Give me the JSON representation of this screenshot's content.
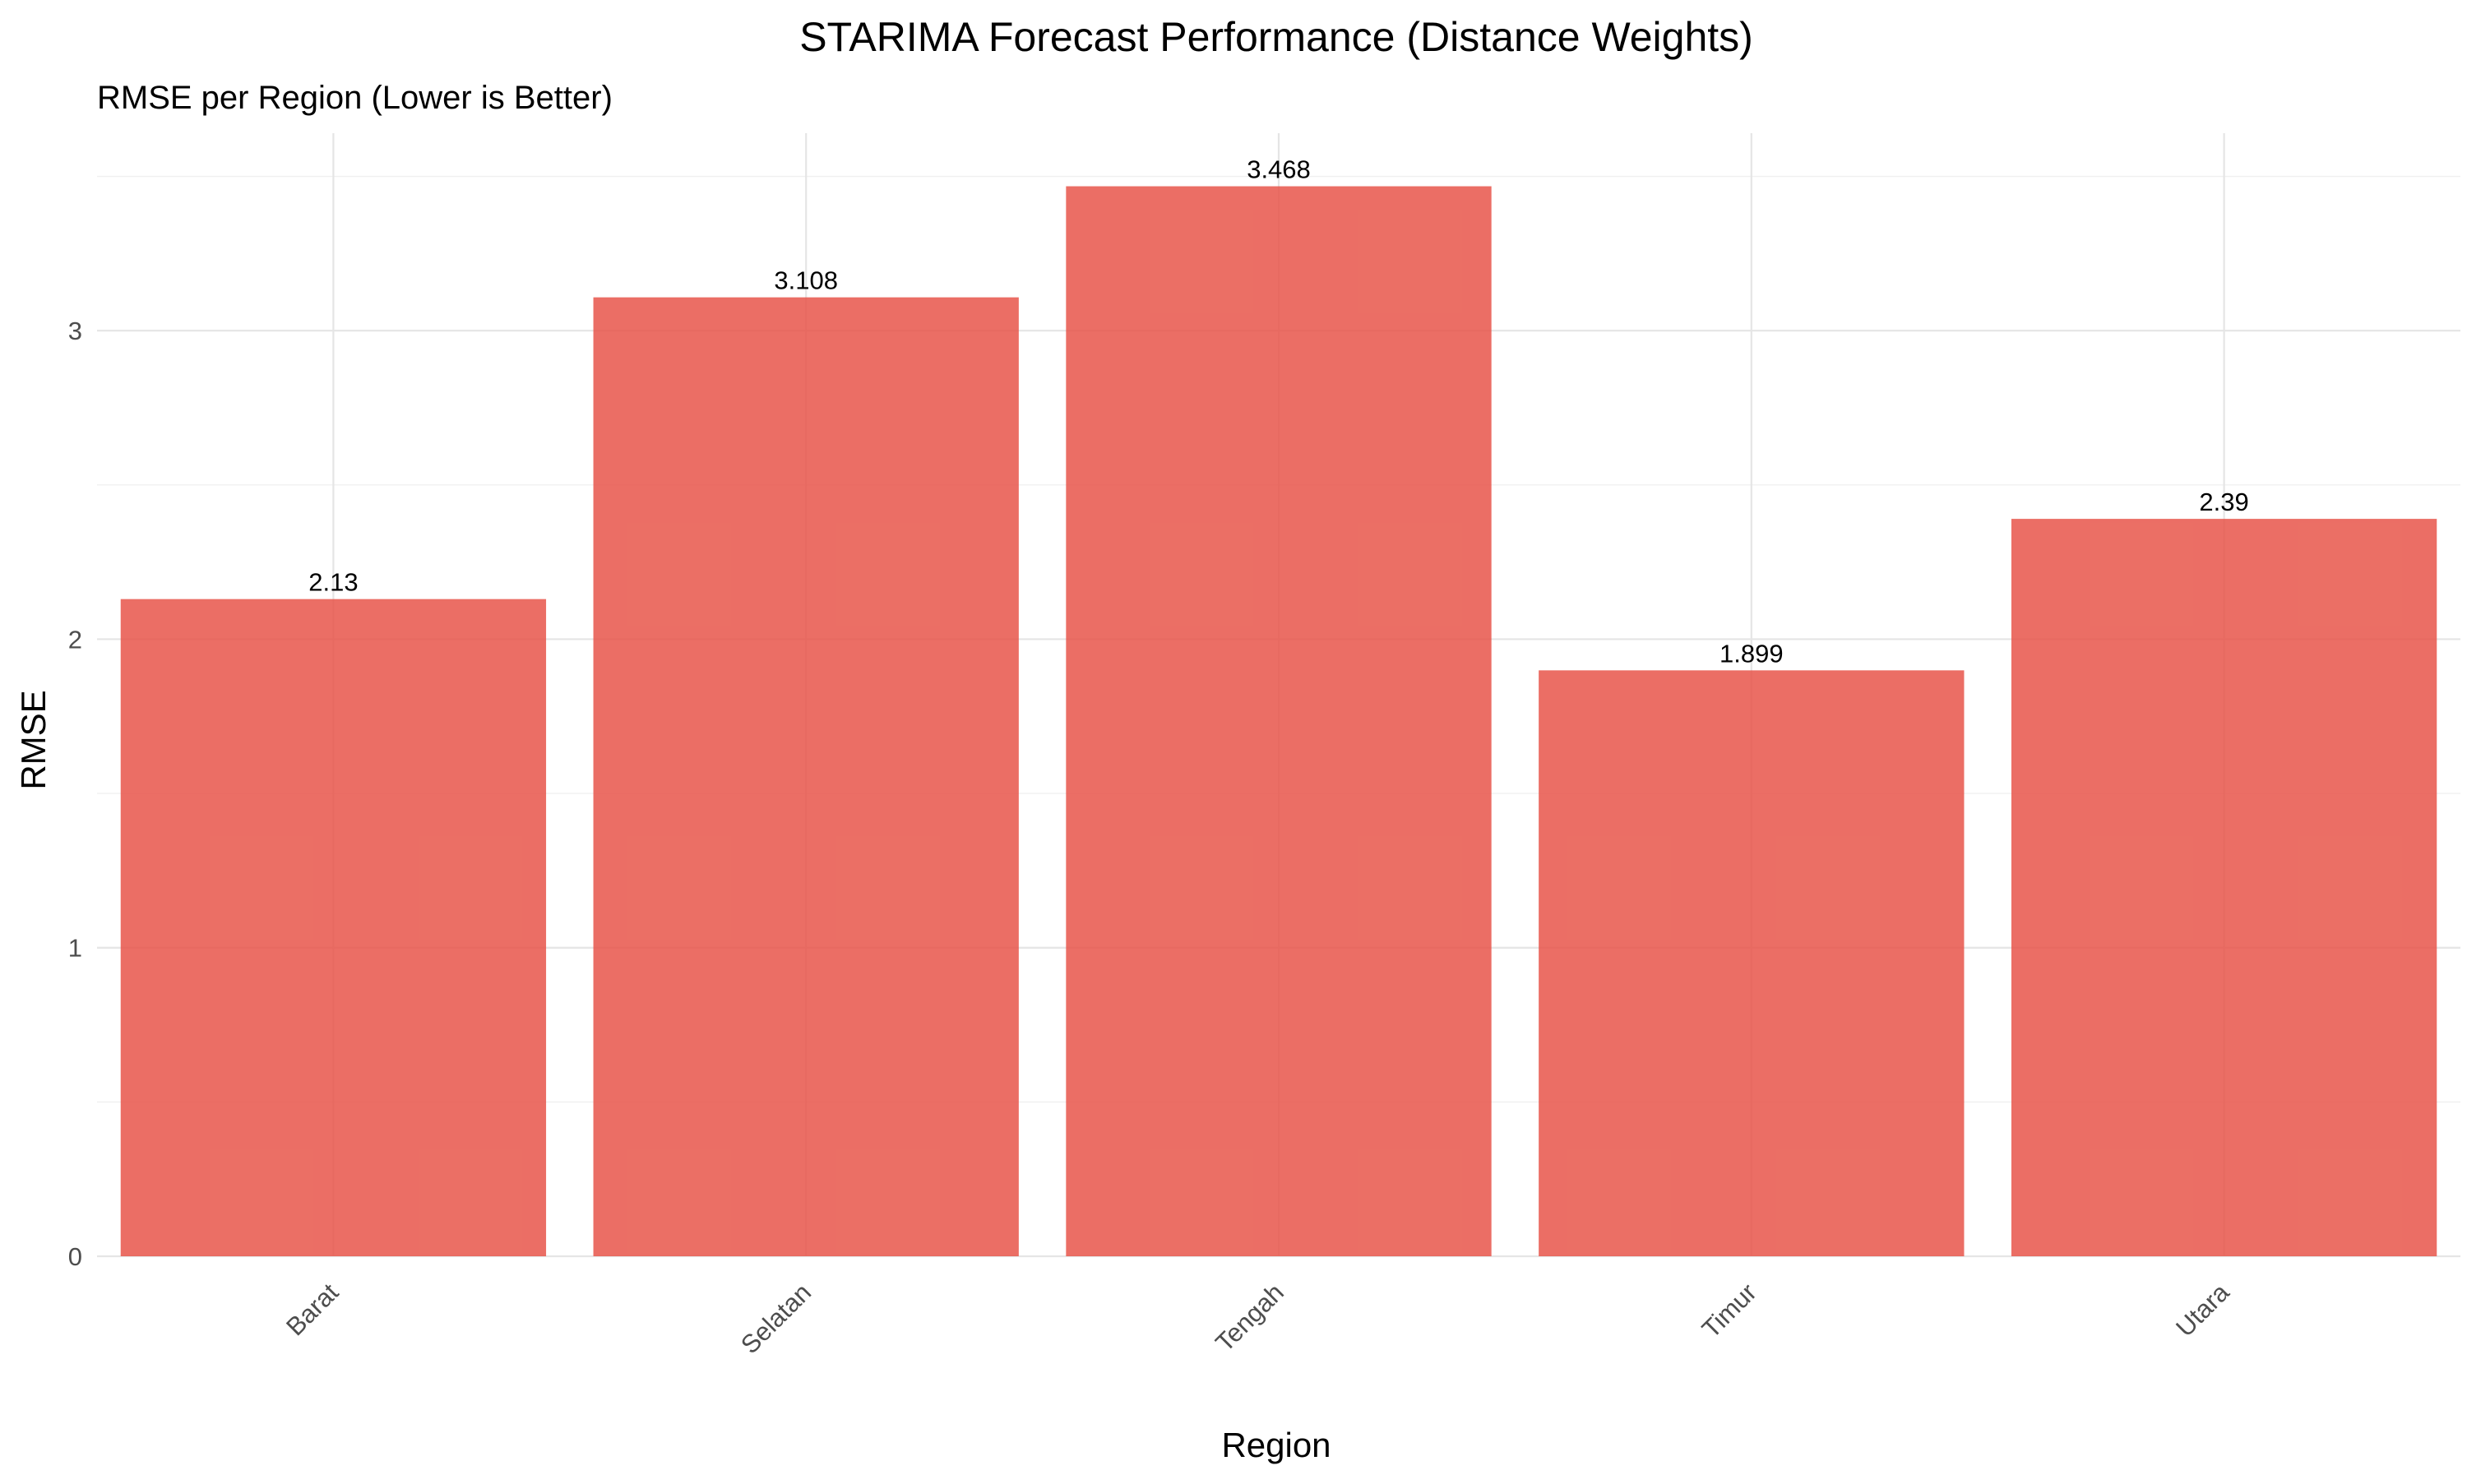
{
  "chart_data": {
    "type": "bar",
    "title": "STARIMA Forecast Performance (Distance Weights)",
    "subtitle": "RMSE per Region (Lower is Better)",
    "xlabel": "Region",
    "ylabel": "RMSE",
    "categories": [
      "Barat",
      "Selatan",
      "Tengah",
      "Timur",
      "Utara"
    ],
    "values": [
      2.13,
      3.108,
      3.468,
      1.899,
      2.39
    ],
    "data_labels": [
      "2.13",
      "3.108",
      "3.468",
      "1.899",
      "2.39"
    ],
    "yticks": [
      0,
      1,
      2,
      3
    ],
    "ytick_labels": [
      "0",
      "1",
      "2",
      "3"
    ],
    "ylim": [
      0,
      3.64
    ],
    "grid": true,
    "legend": "none",
    "bar_color": "#e8554a",
    "bar_opacity": 0.85,
    "x_tick_rotation": -45
  }
}
